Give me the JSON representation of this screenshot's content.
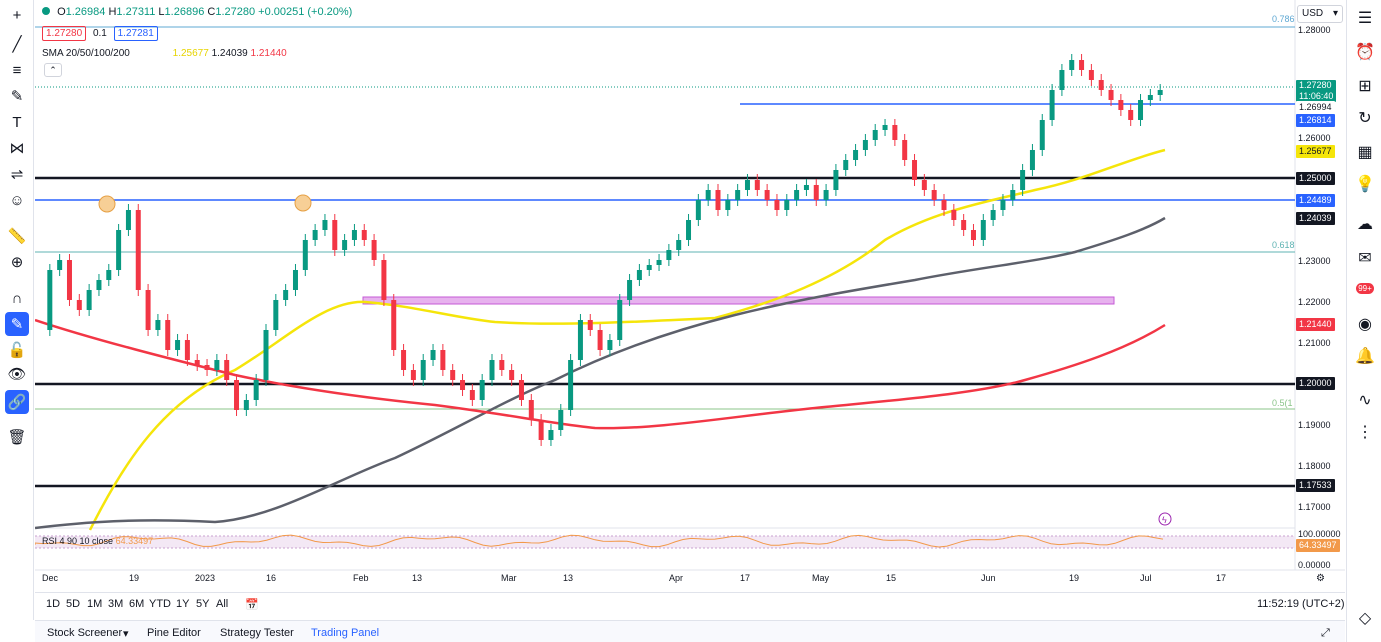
{
  "legend": {
    "open_label": "O",
    "open": "1.26984",
    "high_label": "H",
    "high": "1.27311",
    "low_label": "L",
    "low": "1.26896",
    "close_label": "C",
    "close": "1.27280",
    "change": "+0.00251 (+0.20%)",
    "bid": "1.27280",
    "spread": "0.1",
    "ask": "1.27281"
  },
  "sma": {
    "label": "SMA 20/50/100/200",
    "v1": "1.25677",
    "v2": "1.24039",
    "v3": "1.21440"
  },
  "rsi": {
    "label": "RSI 4 90 10 close",
    "value": "64.33497"
  },
  "currency": "USD",
  "price_axis": [
    "1.28000",
    "1.26000",
    "1.23000",
    "1.22000",
    "1.21000",
    "1.19000",
    "1.18000",
    "1.17000"
  ],
  "price_tags": {
    "current": "1.27280",
    "countdown": "11:06:40",
    "level_a": "1.26994",
    "level_b": "1.26814",
    "sma20": "1.25677",
    "l125": "1.25000",
    "l12448": "1.24489",
    "sma100": "1.24039",
    "sma200": "1.21440",
    "l120": "1.20000",
    "l1175": "1.17533"
  },
  "fib": {
    "f0786": "0.786",
    "f0618": "0.618",
    "f05": "0.5(1"
  },
  "rsi_axis": {
    "top": "100.00000",
    "value": "64.33497",
    "bottom": "0.00000"
  },
  "x_axis": [
    "Dec",
    "19",
    "2023",
    "16",
    "Feb",
    "13",
    "Mar",
    "13",
    "Apr",
    "17",
    "May",
    "15",
    "Jun",
    "19",
    "Jul",
    "17"
  ],
  "ranges": [
    "1D",
    "5D",
    "1M",
    "3M",
    "6M",
    "YTD",
    "1Y",
    "5Y",
    "All"
  ],
  "clock": "11:52:19 (UTC+2)",
  "panels": [
    "Stock Screener",
    "Pine Editor",
    "Strategy Tester",
    "Trading Panel"
  ],
  "badge": "99+",
  "colors": {
    "up": "#089981",
    "down": "#f23645",
    "sma20": "#f5e50a",
    "sma100": "#5d606b",
    "sma200": "#f23645",
    "hline": "#2962ff"
  }
}
